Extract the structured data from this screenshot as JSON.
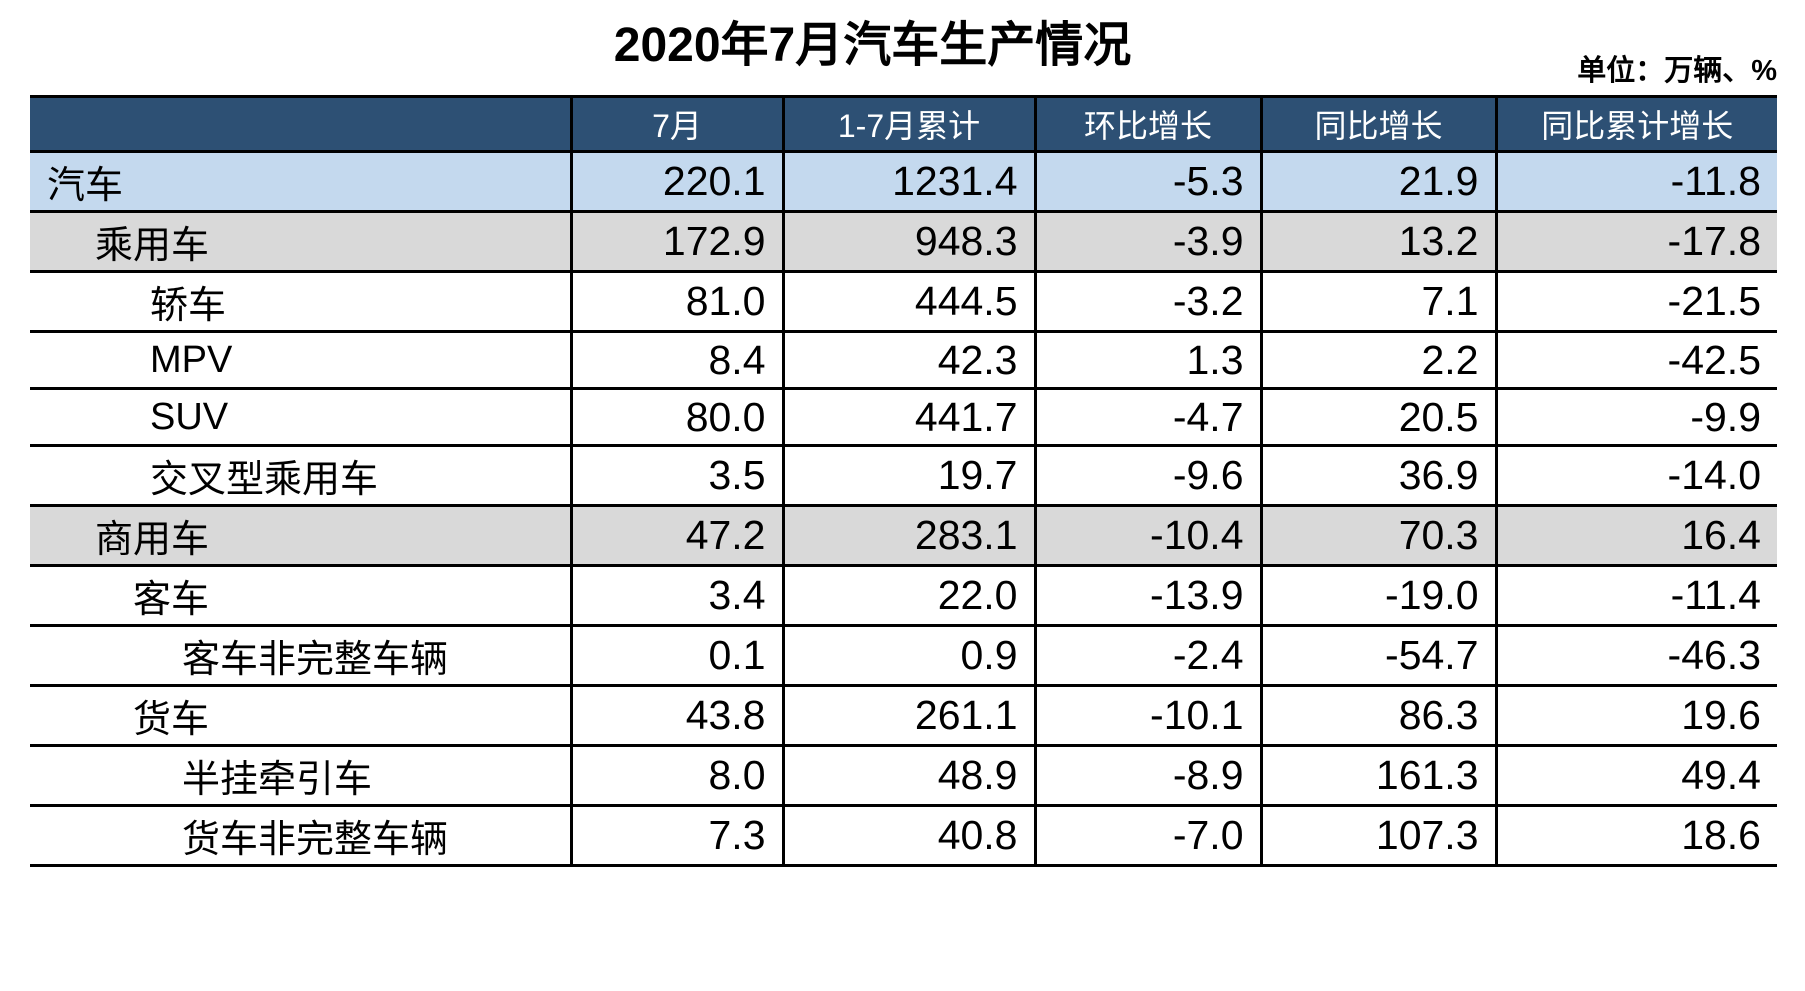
{
  "title": "2020年7月汽车生产情况",
  "unit_note": "单位：万辆、%",
  "colors": {
    "header_bg": "#2D5074",
    "header_text": "#FFFFFF",
    "highlight_blue_row": "#C4D9EE",
    "highlight_gray_row": "#D9D9D9",
    "border": "#000000",
    "body_text": "#000000"
  },
  "table": {
    "columns": [
      "",
      "7月",
      "1-7月累计",
      "环比增长",
      "同比增长",
      "同比累计增长"
    ],
    "rows": [
      {
        "label": "汽车",
        "indent": 0,
        "style": "blue",
        "values": [
          "220.1",
          "1231.4",
          "-5.3",
          "21.9",
          "-11.8"
        ]
      },
      {
        "label": "乘用车",
        "indent": 1,
        "style": "gray",
        "values": [
          "172.9",
          "948.3",
          "-3.9",
          "13.2",
          "-17.8"
        ]
      },
      {
        "label": "轿车",
        "indent": 3,
        "style": "white",
        "values": [
          "81.0",
          "444.5",
          "-3.2",
          "7.1",
          "-21.5"
        ]
      },
      {
        "label": "MPV",
        "indent": 3,
        "style": "white",
        "values": [
          "8.4",
          "42.3",
          "1.3",
          "2.2",
          "-42.5"
        ]
      },
      {
        "label": "SUV",
        "indent": 3,
        "style": "white",
        "values": [
          "80.0",
          "441.7",
          "-4.7",
          "20.5",
          "-9.9"
        ]
      },
      {
        "label": "交叉型乘用车",
        "indent": 3,
        "style": "white",
        "values": [
          "3.5",
          "19.7",
          "-9.6",
          "36.9",
          "-14.0"
        ]
      },
      {
        "label": "商用车",
        "indent": 1,
        "style": "gray",
        "values": [
          "47.2",
          "283.1",
          "-10.4",
          "70.3",
          "16.4"
        ]
      },
      {
        "label": "客车",
        "indent": 2,
        "style": "white",
        "values": [
          "3.4",
          "22.0",
          "-13.9",
          "-19.0",
          "-11.4"
        ]
      },
      {
        "label": "客车非完整车辆",
        "indent": 4,
        "style": "white",
        "values": [
          "0.1",
          "0.9",
          "-2.4",
          "-54.7",
          "-46.3"
        ]
      },
      {
        "label": "货车",
        "indent": 2,
        "style": "white",
        "values": [
          "43.8",
          "261.1",
          "-10.1",
          "86.3",
          "19.6"
        ]
      },
      {
        "label": "半挂牵引车",
        "indent": 4,
        "style": "white",
        "values": [
          "8.0",
          "48.9",
          "-8.9",
          "161.3",
          "49.4"
        ]
      },
      {
        "label": "货车非完整车辆",
        "indent": 4,
        "style": "white",
        "values": [
          "7.3",
          "40.8",
          "-7.0",
          "107.3",
          "18.6"
        ]
      }
    ]
  }
}
